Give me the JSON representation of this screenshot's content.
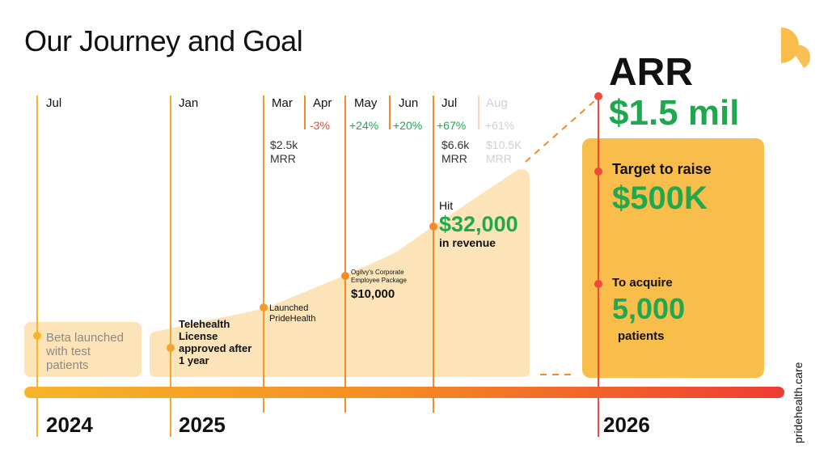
{
  "title": "Our Journey and Goal",
  "brand_vertical": "pridehealth.care",
  "colors": {
    "orange": "#f28a1d",
    "light_fill": "#fde3b8",
    "gold": "#f9bd4b",
    "green": "#1fa84f",
    "red": "#e24b33",
    "gray": "#d0d0d0"
  },
  "timeline": {
    "months": [
      "Jul",
      "Jan",
      "Mar",
      "Apr",
      "May",
      "Jun",
      "Jul",
      "Aug"
    ],
    "changes": [
      "-3%",
      "+24%",
      "+20%",
      "+67%",
      "+61%"
    ],
    "mrr": [
      {
        "value": "$2.5k",
        "unit": "MRR"
      },
      {
        "value": "$6.6k",
        "unit": "MRR"
      },
      {
        "value": "$10.5K",
        "unit": "MRR"
      }
    ],
    "years": [
      "2024",
      "2025",
      "2026"
    ]
  },
  "milestones": {
    "beta": [
      "Beta launched",
      "with test",
      "patients"
    ],
    "license": [
      "Telehealth",
      "License",
      "approved after",
      "1 year"
    ],
    "launch": [
      "Launched",
      "PrideHealth"
    ],
    "ogilvy": [
      "Ogilvy's Corporate",
      "Employee Package"
    ],
    "ogilvy_amount": "$10,000",
    "hit": "Hit",
    "hit_amount": "$32,000",
    "hit_suffix": "in revenue"
  },
  "goal": {
    "arr_label": "ARR",
    "arr_value": "$1.5 mil",
    "raise_label": "Target to raise",
    "raise_value": "$500K",
    "acquire_label": "To acquire",
    "acquire_value": "5,000",
    "acquire_suffix": "patients"
  }
}
